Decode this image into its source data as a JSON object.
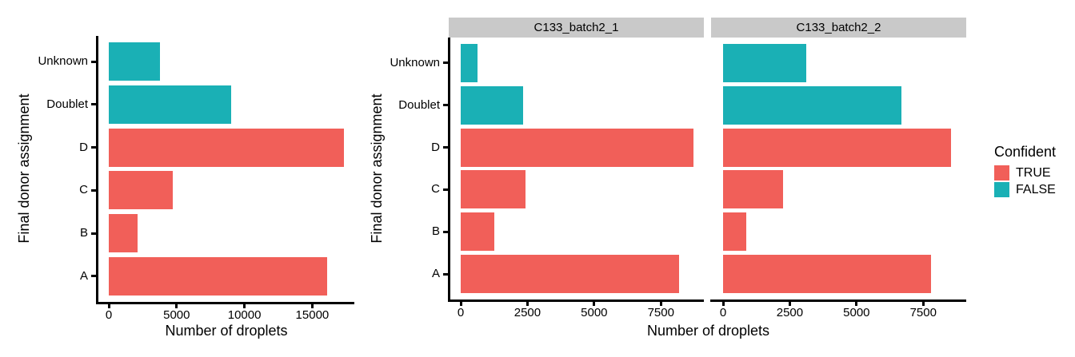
{
  "chart_data": {
    "type": "bar",
    "orientation": "horizontal",
    "grid": false,
    "categories_bottom_to_top": [
      "A",
      "B",
      "C",
      "D",
      "Doublet",
      "Unknown"
    ],
    "category_confident": [
      "TRUE",
      "TRUE",
      "TRUE",
      "TRUE",
      "FALSE",
      "FALSE"
    ],
    "strip_bg": "#C9C9C9",
    "axis_color": "#000000",
    "legend": {
      "title": "Confident",
      "position": "right",
      "entries": [
        {
          "label": "TRUE",
          "color": "#F15F59"
        },
        {
          "label": "FALSE",
          "color": "#1AB0B5"
        }
      ]
    },
    "charts": [
      {
        "name": "overall",
        "xlabel": "Number of droplets",
        "ylabel": "Final donor assignment",
        "xticks": [
          0,
          5000,
          10000,
          15000
        ],
        "xmax": 18100,
        "panels": [
          {
            "strip": null,
            "values": [
              16100,
              2130,
              4720,
              17350,
              9040,
              3750
            ]
          }
        ]
      },
      {
        "name": "per-sample",
        "xlabel": "Number of droplets",
        "ylabel": "Final donor assignment",
        "xticks": [
          0,
          2500,
          5000,
          7500
        ],
        "xmax": 9110,
        "panels": [
          {
            "strip": "C133_batch2_1",
            "values": [
              8170,
              1260,
              2440,
              8730,
              2350,
              620
            ]
          },
          {
            "strip": "C133_batch2_2",
            "values": [
              7780,
              860,
              2240,
              8530,
              6690,
              3120
            ]
          }
        ]
      }
    ]
  }
}
